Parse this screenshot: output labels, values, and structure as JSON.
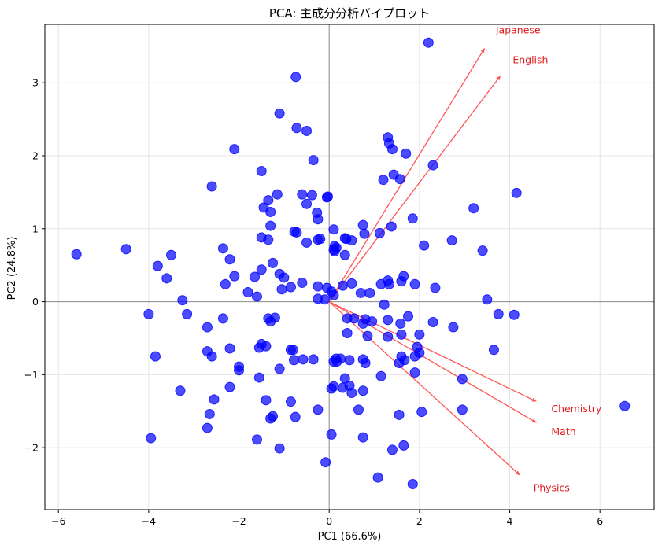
{
  "chart_data": {
    "type": "scatter",
    "title": "PCA: 主成分分析バイプロット",
    "xlabel": "PC1 (66.6%)",
    "ylabel": "PC2 (24.8%)",
    "xlim": [
      -6.3,
      7.2
    ],
    "ylim": [
      -2.85,
      3.8
    ],
    "xticks": [
      -6,
      -4,
      -2,
      0,
      2,
      4,
      6
    ],
    "yticks": [
      -2,
      -1,
      0,
      1,
      2,
      3
    ],
    "grid": true,
    "point_color": "#0000ff",
    "arrow_color": "#ff5555",
    "arrow_label_color": "#e31a1c",
    "loadings": [
      {
        "name": "Japanese",
        "x": 3.45,
        "y": 3.48
      },
      {
        "name": "English",
        "x": 3.8,
        "y": 3.1
      },
      {
        "name": "Chemistry",
        "x": 4.6,
        "y": -1.37
      },
      {
        "name": "Math",
        "x": 4.6,
        "y": -1.66
      },
      {
        "name": "Physics",
        "x": 4.23,
        "y": -2.38
      }
    ],
    "points": [
      [
        2.2,
        3.55
      ],
      [
        -0.74,
        3.08
      ],
      [
        -1.1,
        2.58
      ],
      [
        -0.72,
        2.38
      ],
      [
        -0.5,
        2.34
      ],
      [
        1.3,
        2.25
      ],
      [
        1.33,
        2.17
      ],
      [
        1.4,
        2.09
      ],
      [
        -2.1,
        2.09
      ],
      [
        1.7,
        2.03
      ],
      [
        -0.35,
        1.94
      ],
      [
        2.3,
        1.87
      ],
      [
        -1.5,
        1.79
      ],
      [
        1.43,
        1.74
      ],
      [
        1.2,
        1.67
      ],
      [
        1.57,
        1.68
      ],
      [
        -2.6,
        1.58
      ],
      [
        -1.15,
        1.47
      ],
      [
        -0.6,
        1.47
      ],
      [
        -0.38,
        1.46
      ],
      [
        -0.05,
        1.43
      ],
      [
        -0.03,
        1.44
      ],
      [
        4.15,
        1.49
      ],
      [
        -1.35,
        1.39
      ],
      [
        -0.5,
        1.34
      ],
      [
        -1.45,
        1.29
      ],
      [
        -1.3,
        1.23
      ],
      [
        3.2,
        1.28
      ],
      [
        -0.27,
        1.22
      ],
      [
        -0.25,
        1.13
      ],
      [
        1.85,
        1.14
      ],
      [
        -1.3,
        1.04
      ],
      [
        0.75,
        1.05
      ],
      [
        1.38,
        1.03
      ],
      [
        -0.77,
        0.96
      ],
      [
        -0.72,
        0.95
      ],
      [
        0.1,
        0.99
      ],
      [
        0.78,
        0.93
      ],
      [
        1.12,
        0.94
      ],
      [
        -1.5,
        0.88
      ],
      [
        -1.35,
        0.85
      ],
      [
        0.35,
        0.87
      ],
      [
        0.38,
        0.86
      ],
      [
        0.5,
        0.84
      ],
      [
        -0.25,
        0.85
      ],
      [
        -0.2,
        0.86
      ],
      [
        -0.5,
        0.81
      ],
      [
        0.12,
        0.76
      ],
      [
        0.16,
        0.74
      ],
      [
        0.1,
        0.71
      ],
      [
        0.12,
        0.69
      ],
      [
        0.35,
        0.64
      ],
      [
        2.1,
        0.77
      ],
      [
        2.72,
        0.84
      ],
      [
        3.4,
        0.7
      ],
      [
        -2.35,
        0.73
      ],
      [
        -4.5,
        0.72
      ],
      [
        -5.6,
        0.65
      ],
      [
        -3.5,
        0.64
      ],
      [
        -2.2,
        0.58
      ],
      [
        -3.8,
        0.49
      ],
      [
        -1.25,
        0.53
      ],
      [
        -1.5,
        0.44
      ],
      [
        -1.1,
        0.38
      ],
      [
        -1.0,
        0.33
      ],
      [
        -3.6,
        0.32
      ],
      [
        -2.1,
        0.35
      ],
      [
        -1.65,
        0.34
      ],
      [
        -2.3,
        0.24
      ],
      [
        -0.6,
        0.26
      ],
      [
        -0.85,
        0.2
      ],
      [
        -0.25,
        0.21
      ],
      [
        -0.05,
        0.19
      ],
      [
        0.3,
        0.22
      ],
      [
        0.5,
        0.25
      ],
      [
        1.15,
        0.24
      ],
      [
        1.3,
        0.29
      ],
      [
        1.33,
        0.24
      ],
      [
        1.65,
        0.35
      ],
      [
        1.6,
        0.28
      ],
      [
        1.9,
        0.24
      ],
      [
        2.35,
        0.19
      ],
      [
        -1.8,
        0.13
      ],
      [
        -1.05,
        0.17
      ],
      [
        -1.6,
        0.07
      ],
      [
        0.05,
        0.14
      ],
      [
        0.1,
        0.09
      ],
      [
        0.7,
        0.12
      ],
      [
        0.9,
        0.12
      ],
      [
        -0.25,
        0.04
      ],
      [
        -0.1,
        0.03
      ],
      [
        -3.25,
        0.02
      ],
      [
        3.5,
        0.03
      ],
      [
        1.22,
        -0.04
      ],
      [
        -4.0,
        -0.17
      ],
      [
        -3.15,
        -0.17
      ],
      [
        -2.35,
        -0.23
      ],
      [
        -1.35,
        -0.23
      ],
      [
        -1.2,
        -0.22
      ],
      [
        -1.3,
        -0.27
      ],
      [
        0.4,
        -0.23
      ],
      [
        0.55,
        -0.23
      ],
      [
        0.8,
        -0.24
      ],
      [
        0.95,
        -0.27
      ],
      [
        1.3,
        -0.25
      ],
      [
        1.75,
        -0.2
      ],
      [
        4.1,
        -0.18
      ],
      [
        3.75,
        -0.17
      ],
      [
        0.75,
        -0.3
      ],
      [
        1.58,
        -0.3
      ],
      [
        -2.7,
        -0.35
      ],
      [
        0.4,
        -0.43
      ],
      [
        0.85,
        -0.47
      ],
      [
        1.3,
        -0.48
      ],
      [
        2.3,
        -0.28
      ],
      [
        2.75,
        -0.35
      ],
      [
        1.6,
        -0.45
      ],
      [
        2.0,
        -0.45
      ],
      [
        -1.5,
        -0.58
      ],
      [
        -1.55,
        -0.63
      ],
      [
        -1.4,
        -0.61
      ],
      [
        -2.2,
        -0.64
      ],
      [
        -0.85,
        -0.66
      ],
      [
        -0.8,
        -0.66
      ],
      [
        -2.7,
        -0.68
      ],
      [
        3.65,
        -0.66
      ],
      [
        1.95,
        -0.62
      ],
      [
        2.0,
        -0.7
      ],
      [
        -3.85,
        -0.75
      ],
      [
        -2.6,
        -0.75
      ],
      [
        -0.78,
        -0.8
      ],
      [
        -0.58,
        -0.79
      ],
      [
        -0.35,
        -0.79
      ],
      [
        0.1,
        -0.82
      ],
      [
        0.17,
        -0.82
      ],
      [
        0.15,
        -0.78
      ],
      [
        0.25,
        -0.78
      ],
      [
        0.45,
        -0.8
      ],
      [
        0.75,
        -0.79
      ],
      [
        0.8,
        -0.84
      ],
      [
        1.6,
        -0.75
      ],
      [
        1.67,
        -0.8
      ],
      [
        1.55,
        -0.84
      ],
      [
        1.9,
        -0.75
      ],
      [
        -2.0,
        -0.89
      ],
      [
        -2.0,
        -0.94
      ],
      [
        -1.1,
        -0.92
      ],
      [
        -1.55,
        -1.04
      ],
      [
        0.35,
        -1.05
      ],
      [
        1.15,
        -1.02
      ],
      [
        1.9,
        -0.97
      ],
      [
        2.95,
        -1.06
      ],
      [
        -2.2,
        -1.17
      ],
      [
        0.3,
        -1.18
      ],
      [
        0.05,
        -1.19
      ],
      [
        0.1,
        -1.16
      ],
      [
        0.45,
        -1.15
      ],
      [
        0.5,
        -1.25
      ],
      [
        0.75,
        -1.22
      ],
      [
        -3.3,
        -1.22
      ],
      [
        -2.55,
        -1.34
      ],
      [
        -1.4,
        -1.35
      ],
      [
        -0.85,
        -1.37
      ],
      [
        -2.65,
        -1.54
      ],
      [
        -0.25,
        -1.48
      ],
      [
        0.65,
        -1.48
      ],
      [
        2.95,
        -1.48
      ],
      [
        2.05,
        -1.51
      ],
      [
        6.55,
        -1.43
      ],
      [
        -1.3,
        -1.6
      ],
      [
        -1.25,
        -1.57
      ],
      [
        -0.75,
        -1.58
      ],
      [
        1.55,
        -1.55
      ],
      [
        -2.7,
        -1.73
      ],
      [
        0.05,
        -1.82
      ],
      [
        0.75,
        -1.86
      ],
      [
        -1.6,
        -1.89
      ],
      [
        -3.95,
        -1.87
      ],
      [
        1.65,
        -1.97
      ],
      [
        1.4,
        -2.03
      ],
      [
        -1.1,
        -2.01
      ],
      [
        -0.08,
        -2.2
      ],
      [
        1.08,
        -2.41
      ],
      [
        1.85,
        -2.5
      ]
    ]
  }
}
